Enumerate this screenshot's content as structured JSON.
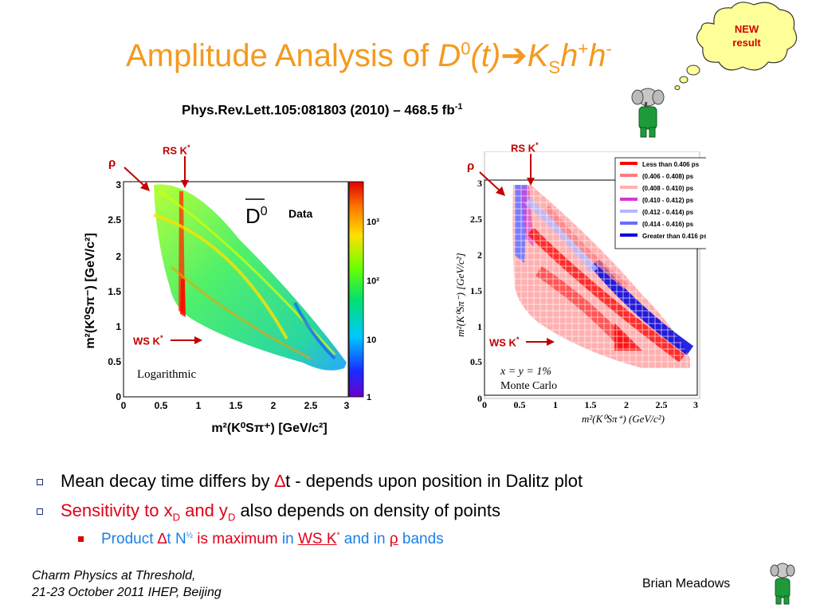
{
  "title": {
    "prefix": "Amplitude Analysis of ",
    "d": "D",
    "d_sup": "0",
    "t": "(t)",
    "arrow": "➔",
    "k": "K",
    "k_sub": "S",
    "h1": "h",
    "h1_sup": "+",
    "h2": "h",
    "h2_sup": "-"
  },
  "reference": {
    "text": "Phys.Rev.Lett.105:081803 (2010)   – 468.5 fb",
    "sup": "-1"
  },
  "callout": {
    "line1": "NEW",
    "line2": "result"
  },
  "left_plot": {
    "label_rs": "RS K",
    "label_rs_sup": "*",
    "label_rho": "ρ",
    "label_ws": "WS K",
    "label_ws_sup": "*",
    "d0_label": "D",
    "d0_sup": "0",
    "data_label": "Data",
    "scale_label": "Logarithmic",
    "x_ticks": [
      "0",
      "0.5",
      "1",
      "1.5",
      "2",
      "2.5",
      "3"
    ],
    "y_ticks": [
      "0",
      "0.5",
      "1",
      "1.5",
      "2",
      "2.5",
      "3"
    ],
    "x_axis": "m²(K⁰Sπ⁺) [GeV/c²]",
    "y_axis": "m²(K⁰Sπ⁻) [GeV/c²]",
    "colorbar_ticks": [
      "10³",
      "10²",
      "10",
      "1"
    ]
  },
  "right_plot": {
    "label_rs": "RS K",
    "label_rs_sup": "*",
    "label_rho": "ρ",
    "label_ws": "WS K",
    "label_ws_sup": "*",
    "x_ticks": [
      "0",
      "0.5",
      "1",
      "1.5",
      "2",
      "2.5",
      "3"
    ],
    "y_ticks": [
      "0",
      "0.5",
      "1",
      "1.5",
      "2",
      "2.5",
      "3"
    ],
    "x_axis": "m²(K⁰Sπ⁺) (GeV/c²)",
    "y_axis": "m²(K⁰Sπ⁻) [GeV/c²]",
    "annotation_line1": "x = y = 1%",
    "annotation_line2": "Monte Carlo",
    "legend": [
      {
        "label": "Less than 0.406 ps",
        "color": "#ff0000"
      },
      {
        "label": "(0.406 - 0.408) ps",
        "color": "#ff7a7a"
      },
      {
        "label": "(0.408 - 0.410) ps",
        "color": "#ffb0b0"
      },
      {
        "label": "(0.410 - 0.412) ps",
        "color": "#d23ad2"
      },
      {
        "label": "(0.412 - 0.414) ps",
        "color": "#b7b7ff"
      },
      {
        "label": "(0.414 - 0.416) ps",
        "color": "#6b6bff"
      },
      {
        "label": "Greater than 0.416 ps",
        "color": "#0000e0"
      }
    ]
  },
  "bullets": {
    "b1_a": "Mean decay time differs by ",
    "b1_delta": "∆",
    "b1_b": "t - depends upon position in Dalitz plot",
    "b2_a": "Sensitivity to x",
    "b2_sub1": "D",
    "b2_b": " and y",
    "b2_sub2": "D",
    "b2_c": " also depends on density of points",
    "b3_a": "Product ",
    "b3_delta": "∆",
    "b3_b": "t N",
    "b3_sup": "½",
    "b3_c": "  is maximum",
    "b3_d": " in ",
    "b3_e": "WS K",
    "b3_e_sup": "*",
    "b3_f": " and in ",
    "b3_g": "ρ",
    "b3_h": " bands"
  },
  "footer": {
    "left_line1": "Charm Physics at Threshold,",
    "left_line2": "21-23 October 2011 IHEP, Beijing",
    "right": "Brian Meadows"
  }
}
